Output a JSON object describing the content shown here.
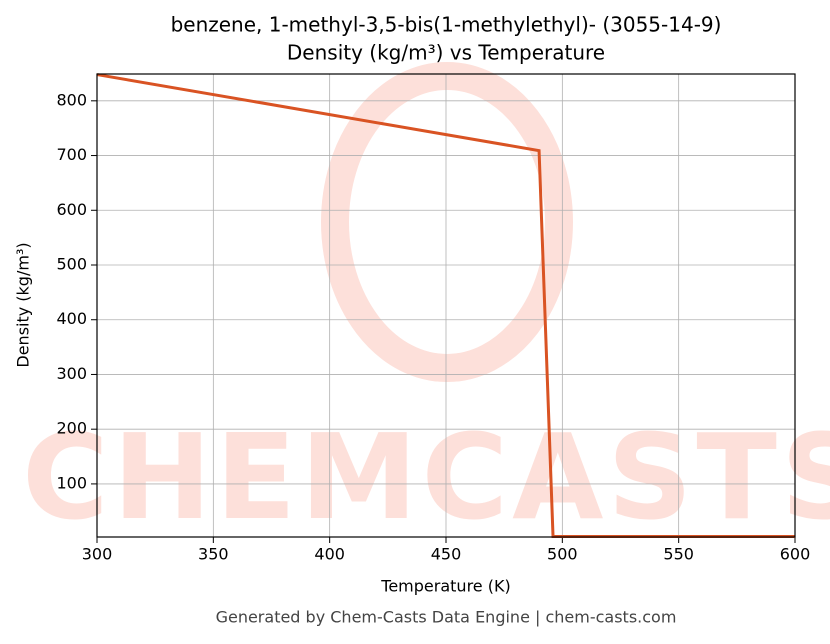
{
  "chart_data": {
    "type": "line",
    "title": "benzene, 1-methyl-3,5-bis(1-methylethyl)- (3055-14-9)",
    "subtitle": "Density (kg/m³) vs Temperature",
    "x_label": "Temperature (K)",
    "y_label": "Density (kg/m³)",
    "footer": "Generated by Chem-Casts Data Engine | chem-casts.com",
    "watermark": "CHEMCASTS",
    "x": [
      300,
      490,
      496,
      600
    ],
    "series": [
      {
        "name": "Density",
        "color": "#d95323",
        "values": [
          848,
          709,
          4,
          4
        ]
      }
    ],
    "xlim": [
      300,
      600
    ],
    "xticks": [
      300,
      350,
      400,
      450,
      500,
      550,
      600
    ],
    "ylim": [
      3,
      849
    ],
    "yticks": [
      100,
      200,
      300,
      400,
      500,
      600,
      700,
      800
    ],
    "grid": true
  }
}
